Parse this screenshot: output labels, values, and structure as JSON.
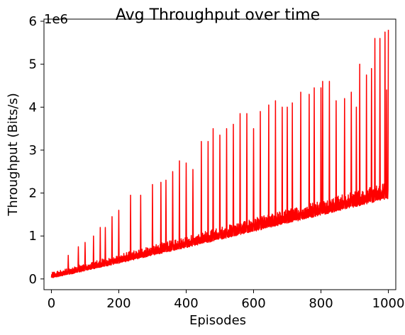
{
  "chart_data": {
    "type": "line",
    "title": "Avg Throughput over time",
    "xlabel": "Episodes",
    "ylabel": "Throughput (Bits/s)",
    "y_offset_label": "1e6",
    "xlim": [
      -22,
      1022
    ],
    "ylim": [
      -0.25,
      6.05
    ],
    "x_ticks": [
      0,
      200,
      400,
      600,
      800,
      1000
    ],
    "y_ticks": [
      0,
      1,
      2,
      3,
      4,
      5,
      6
    ],
    "x_tick_labels": [
      "0",
      "200",
      "400",
      "600",
      "800",
      "1000"
    ],
    "y_tick_labels": [
      "0",
      "1",
      "2",
      "3",
      "4",
      "5",
      "6"
    ],
    "grid": false,
    "series": [
      {
        "color": "#ff0000",
        "description": "noisy per-episode throughput in units of 1e6 bits/s; lower envelope rises ~0 to ~1.85, upper envelope with periodic spikes rises to ~5.8",
        "x_start": 0,
        "x_end": 1000,
        "spikes": [
          [
            50,
            0.55
          ],
          [
            80,
            0.75
          ],
          [
            100,
            0.85
          ],
          [
            125,
            1.0
          ],
          [
            145,
            1.2
          ],
          [
            160,
            1.2
          ],
          [
            180,
            1.45
          ],
          [
            200,
            1.6
          ],
          [
            235,
            1.95
          ],
          [
            265,
            1.95
          ],
          [
            300,
            2.2
          ],
          [
            325,
            2.25
          ],
          [
            340,
            2.3
          ],
          [
            360,
            2.5
          ],
          [
            380,
            2.75
          ],
          [
            400,
            2.7
          ],
          [
            420,
            2.55
          ],
          [
            445,
            3.2
          ],
          [
            465,
            3.2
          ],
          [
            480,
            3.5
          ],
          [
            500,
            3.35
          ],
          [
            520,
            3.5
          ],
          [
            540,
            3.6
          ],
          [
            560,
            3.85
          ],
          [
            580,
            3.85
          ],
          [
            600,
            3.5
          ],
          [
            620,
            3.9
          ],
          [
            645,
            4.05
          ],
          [
            665,
            4.15
          ],
          [
            685,
            4.0
          ],
          [
            700,
            4.0
          ],
          [
            715,
            4.1
          ],
          [
            740,
            4.35
          ],
          [
            765,
            4.3
          ],
          [
            780,
            4.45
          ],
          [
            800,
            4.45
          ],
          [
            805,
            4.6
          ],
          [
            825,
            4.6
          ],
          [
            845,
            4.15
          ],
          [
            870,
            4.2
          ],
          [
            890,
            4.35
          ],
          [
            905,
            4.0
          ],
          [
            915,
            5.0
          ],
          [
            935,
            4.75
          ],
          [
            950,
            4.9
          ],
          [
            960,
            5.6
          ],
          [
            975,
            5.6
          ],
          [
            990,
            5.75
          ],
          [
            995,
            4.4
          ],
          [
            1000,
            5.8
          ]
        ]
      }
    ]
  }
}
